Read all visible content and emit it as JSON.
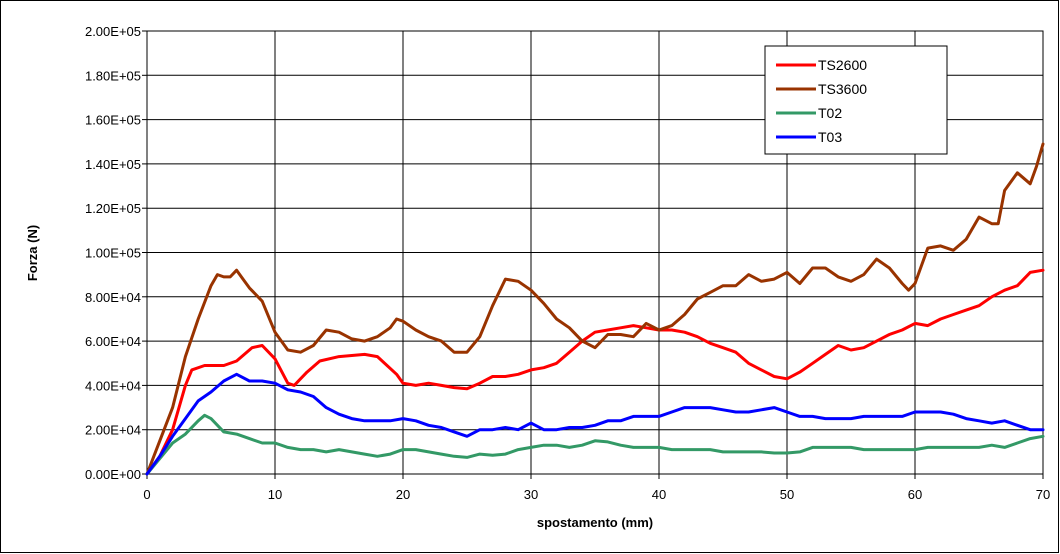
{
  "chart_data": {
    "type": "line",
    "xlabel": "spostamento (mm)",
    "ylabel": "Forza (N)",
    "xlim": [
      0,
      70
    ],
    "ylim": [
      0,
      200000
    ],
    "x_ticks": [
      "0",
      "10",
      "20",
      "30",
      "40",
      "50",
      "60",
      "70"
    ],
    "y_ticks": [
      "0.00E+00",
      "2.00E+04",
      "4.00E+04",
      "6.00E+04",
      "8.00E+04",
      "1.00E+05",
      "1.20E+05",
      "1.40E+05",
      "1.60E+05",
      "1.80E+05",
      "2.00E+05"
    ],
    "grid": true,
    "legend_position": "top-right",
    "series": [
      {
        "name": "TS2600",
        "color": "#ff0000",
        "points": [
          [
            0,
            0
          ],
          [
            1,
            8000
          ],
          [
            2,
            20000
          ],
          [
            3,
            40000
          ],
          [
            3.5,
            47000
          ],
          [
            4.5,
            49000
          ],
          [
            6,
            49000
          ],
          [
            7,
            51000
          ],
          [
            8.2,
            57000
          ],
          [
            9,
            58000
          ],
          [
            10,
            52000
          ],
          [
            11,
            41000
          ],
          [
            11.5,
            40000
          ],
          [
            12.5,
            46000
          ],
          [
            13.5,
            51000
          ],
          [
            15,
            53000
          ],
          [
            17,
            54000
          ],
          [
            18,
            53000
          ],
          [
            19.5,
            45000
          ],
          [
            20,
            41000
          ],
          [
            21,
            40000
          ],
          [
            22,
            41000
          ],
          [
            23,
            40000
          ],
          [
            24,
            39000
          ],
          [
            25,
            38500
          ],
          [
            26,
            41000
          ],
          [
            27,
            44000
          ],
          [
            28,
            44000
          ],
          [
            29,
            45000
          ],
          [
            30,
            47000
          ],
          [
            31,
            48000
          ],
          [
            32,
            50000
          ],
          [
            33,
            55000
          ],
          [
            34,
            60000
          ],
          [
            35,
            64000
          ],
          [
            36,
            65000
          ],
          [
            37,
            66000
          ],
          [
            38,
            67000
          ],
          [
            39,
            66000
          ],
          [
            40,
            65000
          ],
          [
            41,
            65000
          ],
          [
            42,
            64000
          ],
          [
            43,
            62000
          ],
          [
            44,
            59000
          ],
          [
            45,
            57000
          ],
          [
            46,
            55000
          ],
          [
            47,
            50000
          ],
          [
            48,
            47000
          ],
          [
            49,
            44000
          ],
          [
            50,
            43000
          ],
          [
            51,
            46000
          ],
          [
            52,
            50000
          ],
          [
            53,
            54000
          ],
          [
            54,
            58000
          ],
          [
            55,
            56000
          ],
          [
            56,
            57000
          ],
          [
            57,
            60000
          ],
          [
            58,
            63000
          ],
          [
            59,
            65000
          ],
          [
            60,
            68000
          ],
          [
            61,
            67000
          ],
          [
            62,
            70000
          ],
          [
            63,
            72000
          ],
          [
            64,
            74000
          ],
          [
            65,
            76000
          ],
          [
            66,
            80000
          ],
          [
            67,
            83000
          ],
          [
            68,
            85000
          ],
          [
            69,
            91000
          ],
          [
            70,
            92000
          ]
        ]
      },
      {
        "name": "TS3600",
        "color": "#993300",
        "points": [
          [
            0,
            0
          ],
          [
            1,
            15000
          ],
          [
            2,
            30000
          ],
          [
            3,
            53000
          ],
          [
            4,
            70000
          ],
          [
            5,
            85000
          ],
          [
            5.5,
            90000
          ],
          [
            6,
            89000
          ],
          [
            6.5,
            89000
          ],
          [
            7,
            92000
          ],
          [
            7.5,
            88000
          ],
          [
            8,
            84000
          ],
          [
            9,
            78000
          ],
          [
            10,
            64000
          ],
          [
            11,
            56000
          ],
          [
            12,
            55000
          ],
          [
            13,
            58000
          ],
          [
            14,
            65000
          ],
          [
            15,
            64000
          ],
          [
            16,
            61000
          ],
          [
            17,
            60000
          ],
          [
            18,
            62000
          ],
          [
            19,
            66000
          ],
          [
            19.5,
            70000
          ],
          [
            20,
            69000
          ],
          [
            21,
            65000
          ],
          [
            22,
            62000
          ],
          [
            23,
            60000
          ],
          [
            24,
            55000
          ],
          [
            25,
            55000
          ],
          [
            26,
            62000
          ],
          [
            27,
            76000
          ],
          [
            28,
            88000
          ],
          [
            29,
            87000
          ],
          [
            30,
            83000
          ],
          [
            31,
            77000
          ],
          [
            32,
            70000
          ],
          [
            33,
            66000
          ],
          [
            34,
            60000
          ],
          [
            35,
            57000
          ],
          [
            36,
            63000
          ],
          [
            37,
            63000
          ],
          [
            38,
            62000
          ],
          [
            39,
            68000
          ],
          [
            40,
            65000
          ],
          [
            41,
            67000
          ],
          [
            42,
            72000
          ],
          [
            43,
            79000
          ],
          [
            44,
            82000
          ],
          [
            45,
            85000
          ],
          [
            46,
            85000
          ],
          [
            47,
            90000
          ],
          [
            48,
            87000
          ],
          [
            49,
            88000
          ],
          [
            50,
            91000
          ],
          [
            51,
            86000
          ],
          [
            52,
            93000
          ],
          [
            53,
            93000
          ],
          [
            54,
            89000
          ],
          [
            55,
            87000
          ],
          [
            56,
            90000
          ],
          [
            57,
            97000
          ],
          [
            58,
            93000
          ],
          [
            59,
            86000
          ],
          [
            59.5,
            83000
          ],
          [
            60,
            86000
          ],
          [
            61,
            102000
          ],
          [
            62,
            103000
          ],
          [
            63,
            101000
          ],
          [
            64,
            106000
          ],
          [
            65,
            116000
          ],
          [
            66,
            113000
          ],
          [
            66.5,
            113000
          ],
          [
            67,
            128000
          ],
          [
            68,
            136000
          ],
          [
            69,
            131000
          ],
          [
            69.5,
            139000
          ],
          [
            70,
            149000
          ]
        ]
      },
      {
        "name": "T02",
        "color": "#339966",
        "points": [
          [
            0,
            0
          ],
          [
            1,
            7000
          ],
          [
            2,
            14000
          ],
          [
            3,
            18000
          ],
          [
            4,
            24000
          ],
          [
            4.5,
            26500
          ],
          [
            5,
            25000
          ],
          [
            6,
            19000
          ],
          [
            7,
            18000
          ],
          [
            8,
            16000
          ],
          [
            9,
            14000
          ],
          [
            10,
            14000
          ],
          [
            11,
            12000
          ],
          [
            12,
            11000
          ],
          [
            13,
            11000
          ],
          [
            14,
            10000
          ],
          [
            15,
            11000
          ],
          [
            16,
            10000
          ],
          [
            17,
            9000
          ],
          [
            18,
            8000
          ],
          [
            19,
            9000
          ],
          [
            20,
            11000
          ],
          [
            21,
            11000
          ],
          [
            22,
            10000
          ],
          [
            23,
            9000
          ],
          [
            24,
            8000
          ],
          [
            25,
            7500
          ],
          [
            26,
            9000
          ],
          [
            27,
            8500
          ],
          [
            28,
            9000
          ],
          [
            29,
            11000
          ],
          [
            30,
            12000
          ],
          [
            31,
            13000
          ],
          [
            32,
            13000
          ],
          [
            33,
            12000
          ],
          [
            34,
            13000
          ],
          [
            35,
            15000
          ],
          [
            36,
            14500
          ],
          [
            37,
            13000
          ],
          [
            38,
            12000
          ],
          [
            39,
            12000
          ],
          [
            40,
            12000
          ],
          [
            41,
            11000
          ],
          [
            42,
            11000
          ],
          [
            43,
            11000
          ],
          [
            44,
            11000
          ],
          [
            45,
            10000
          ],
          [
            46,
            10000
          ],
          [
            47,
            10000
          ],
          [
            48,
            10000
          ],
          [
            49,
            9500
          ],
          [
            50,
            9500
          ],
          [
            51,
            10000
          ],
          [
            52,
            12000
          ],
          [
            53,
            12000
          ],
          [
            54,
            12000
          ],
          [
            55,
            12000
          ],
          [
            56,
            11000
          ],
          [
            57,
            11000
          ],
          [
            58,
            11000
          ],
          [
            59,
            11000
          ],
          [
            60,
            11000
          ],
          [
            61,
            12000
          ],
          [
            62,
            12000
          ],
          [
            63,
            12000
          ],
          [
            64,
            12000
          ],
          [
            65,
            12000
          ],
          [
            66,
            13000
          ],
          [
            67,
            12000
          ],
          [
            68,
            14000
          ],
          [
            69,
            16000
          ],
          [
            70,
            17000
          ]
        ]
      },
      {
        "name": "T03",
        "color": "#0000ff",
        "points": [
          [
            0,
            0
          ],
          [
            1,
            8000
          ],
          [
            2,
            17000
          ],
          [
            3,
            25000
          ],
          [
            4,
            33000
          ],
          [
            5,
            37000
          ],
          [
            6,
            42000
          ],
          [
            7,
            45000
          ],
          [
            8,
            42000
          ],
          [
            9,
            42000
          ],
          [
            10,
            41000
          ],
          [
            11,
            38000
          ],
          [
            12,
            37000
          ],
          [
            13,
            35000
          ],
          [
            14,
            30000
          ],
          [
            15,
            27000
          ],
          [
            16,
            25000
          ],
          [
            17,
            24000
          ],
          [
            18,
            24000
          ],
          [
            19,
            24000
          ],
          [
            20,
            25000
          ],
          [
            21,
            24000
          ],
          [
            22,
            22000
          ],
          [
            23,
            21000
          ],
          [
            24,
            19000
          ],
          [
            25,
            17000
          ],
          [
            26,
            20000
          ],
          [
            27,
            20000
          ],
          [
            28,
            21000
          ],
          [
            29,
            20000
          ],
          [
            30,
            23000
          ],
          [
            31,
            20000
          ],
          [
            32,
            20000
          ],
          [
            33,
            21000
          ],
          [
            34,
            21000
          ],
          [
            35,
            22000
          ],
          [
            36,
            24000
          ],
          [
            37,
            24000
          ],
          [
            38,
            26000
          ],
          [
            39,
            26000
          ],
          [
            40,
            26000
          ],
          [
            41,
            28000
          ],
          [
            42,
            30000
          ],
          [
            43,
            30000
          ],
          [
            44,
            30000
          ],
          [
            45,
            29000
          ],
          [
            46,
            28000
          ],
          [
            47,
            28000
          ],
          [
            48,
            29000
          ],
          [
            49,
            30000
          ],
          [
            50,
            28000
          ],
          [
            51,
            26000
          ],
          [
            52,
            26000
          ],
          [
            53,
            25000
          ],
          [
            54,
            25000
          ],
          [
            55,
            25000
          ],
          [
            56,
            26000
          ],
          [
            57,
            26000
          ],
          [
            58,
            26000
          ],
          [
            59,
            26000
          ],
          [
            60,
            28000
          ],
          [
            61,
            28000
          ],
          [
            62,
            28000
          ],
          [
            63,
            27000
          ],
          [
            64,
            25000
          ],
          [
            65,
            24000
          ],
          [
            66,
            23000
          ],
          [
            67,
            24000
          ],
          [
            68,
            22000
          ],
          [
            69,
            20000
          ],
          [
            70,
            20000
          ]
        ]
      }
    ]
  }
}
